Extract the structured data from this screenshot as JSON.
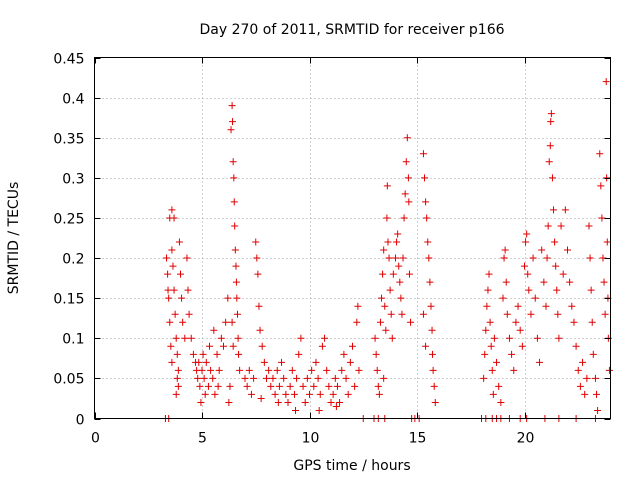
{
  "chart_data": {
    "type": "scatter",
    "title": "Day 270 of 2011, SRMTID for receiver p166",
    "xlabel": "GPS time / hours",
    "ylabel": "SRMTID / TECUs",
    "xlim": [
      0,
      24
    ],
    "ylim": [
      0,
      0.45
    ],
    "x_ticks": [
      "0",
      "5",
      "10",
      "15",
      "20"
    ],
    "x_tick_values": [
      0,
      5,
      10,
      15,
      20
    ],
    "y_ticks": [
      "0",
      "0.05",
      "0.1",
      "0.15",
      "0.2",
      "0.25",
      "0.3",
      "0.35",
      "0.4",
      "0.45"
    ],
    "y_tick_values": [
      0,
      0.05,
      0.1,
      0.15,
      0.2,
      0.25,
      0.3,
      0.35,
      0.4,
      0.45
    ],
    "grid": true,
    "marker": "+",
    "color": "#e00000",
    "series": [
      {
        "name": "SRMTID",
        "points": [
          [
            3.3,
            0.0
          ],
          [
            3.45,
            0.0
          ],
          [
            3.35,
            0.2
          ],
          [
            3.4,
            0.18
          ],
          [
            3.42,
            0.16
          ],
          [
            3.45,
            0.15
          ],
          [
            3.5,
            0.12
          ],
          [
            3.55,
            0.09
          ],
          [
            3.6,
            0.07
          ],
          [
            3.5,
            0.25
          ],
          [
            3.6,
            0.26
          ],
          [
            3.7,
            0.25
          ],
          [
            3.6,
            0.21
          ],
          [
            3.65,
            0.19
          ],
          [
            3.7,
            0.16
          ],
          [
            3.75,
            0.13
          ],
          [
            3.8,
            0.1
          ],
          [
            3.85,
            0.08
          ],
          [
            3.9,
            0.06
          ],
          [
            3.95,
            0.22
          ],
          [
            4.0,
            0.18
          ],
          [
            4.05,
            0.15
          ],
          [
            4.1,
            0.12
          ],
          [
            4.2,
            0.1
          ],
          [
            4.3,
            0.2
          ],
          [
            4.35,
            0.16
          ],
          [
            4.4,
            0.13
          ],
          [
            3.9,
            0.04
          ],
          [
            3.8,
            0.03
          ],
          [
            3.85,
            0.05
          ],
          [
            4.5,
            0.1
          ],
          [
            4.6,
            0.08
          ],
          [
            4.7,
            0.07
          ],
          [
            4.75,
            0.06
          ],
          [
            4.8,
            0.05
          ],
          [
            4.9,
            0.04
          ],
          [
            5.0,
            0.06
          ],
          [
            5.1,
            0.05
          ],
          [
            5.2,
            0.07
          ],
          [
            5.3,
            0.04
          ],
          [
            5.4,
            0.06
          ],
          [
            5.5,
            0.05
          ],
          [
            5.6,
            0.03
          ],
          [
            5.7,
            0.08
          ],
          [
            5.8,
            0.06
          ],
          [
            5.9,
            0.1
          ],
          [
            6.0,
            0.09
          ],
          [
            6.1,
            0.12
          ],
          [
            4.95,
            0.02
          ],
          [
            5.15,
            0.03
          ],
          [
            5.35,
            0.09
          ],
          [
            5.55,
            0.11
          ],
          [
            5.75,
            0.04
          ],
          [
            5.05,
            0.08
          ],
          [
            4.85,
            0.07
          ],
          [
            6.2,
            0.15
          ],
          [
            6.25,
            0.02
          ],
          [
            6.3,
            0.04
          ],
          [
            6.35,
            0.36
          ],
          [
            6.4,
            0.39
          ],
          [
            6.42,
            0.37
          ],
          [
            6.45,
            0.32
          ],
          [
            6.48,
            0.3
          ],
          [
            6.5,
            0.27
          ],
          [
            6.52,
            0.24
          ],
          [
            6.55,
            0.21
          ],
          [
            6.58,
            0.19
          ],
          [
            6.6,
            0.17
          ],
          [
            6.62,
            0.15
          ],
          [
            6.65,
            0.13
          ],
          [
            6.68,
            0.1
          ],
          [
            6.7,
            0.08
          ],
          [
            6.75,
            0.06
          ],
          [
            6.4,
            0.12
          ],
          [
            6.45,
            0.09
          ],
          [
            7.0,
            0.05
          ],
          [
            7.1,
            0.04
          ],
          [
            7.2,
            0.06
          ],
          [
            7.3,
            0.03
          ],
          [
            7.4,
            0.05
          ],
          [
            7.5,
            0.22
          ],
          [
            7.55,
            0.2
          ],
          [
            7.6,
            0.18
          ],
          [
            7.65,
            0.14
          ],
          [
            7.7,
            0.11
          ],
          [
            7.8,
            0.09
          ],
          [
            7.9,
            0.07
          ],
          [
            8.0,
            0.05
          ],
          [
            8.1,
            0.06
          ],
          [
            8.2,
            0.04
          ],
          [
            8.3,
            0.05
          ],
          [
            8.4,
            0.03
          ],
          [
            8.5,
            0.06
          ],
          [
            8.6,
            0.04
          ],
          [
            8.7,
            0.07
          ],
          [
            8.8,
            0.05
          ],
          [
            8.9,
            0.03
          ],
          [
            9.0,
            0.02
          ],
          [
            9.1,
            0.04
          ],
          [
            9.2,
            0.06
          ],
          [
            9.3,
            0.03
          ],
          [
            9.4,
            0.05
          ],
          [
            9.5,
            0.08
          ],
          [
            9.6,
            0.1
          ],
          [
            9.7,
            0.04
          ],
          [
            9.8,
            0.02
          ],
          [
            9.9,
            0.05
          ],
          [
            10.0,
            0.03
          ],
          [
            10.1,
            0.06
          ],
          [
            10.2,
            0.04
          ],
          [
            10.3,
            0.07
          ],
          [
            10.4,
            0.05
          ],
          [
            10.5,
            0.03
          ],
          [
            10.6,
            0.09
          ],
          [
            10.7,
            0.1
          ],
          [
            10.8,
            0.06
          ],
          [
            10.9,
            0.04
          ],
          [
            11.0,
            0.02
          ],
          [
            11.1,
            0.03
          ],
          [
            11.2,
            0.05
          ],
          [
            11.3,
            0.04
          ],
          [
            11.4,
            0.02
          ],
          [
            11.5,
            0.06
          ],
          [
            11.6,
            0.08
          ],
          [
            11.7,
            0.05
          ],
          [
            11.8,
            0.03
          ],
          [
            11.9,
            0.07
          ],
          [
            12.0,
            0.09
          ],
          [
            12.1,
            0.04
          ],
          [
            12.2,
            0.12
          ],
          [
            12.25,
            0.14
          ],
          [
            12.3,
            0.06
          ],
          [
            8.55,
            0.02
          ],
          [
            9.35,
            0.01
          ],
          [
            10.45,
            0.01
          ],
          [
            11.25,
            0.015
          ],
          [
            7.75,
            0.025
          ],
          [
            12.5,
            0.0
          ],
          [
            13.0,
            0.0
          ],
          [
            13.2,
            0.0
          ],
          [
            13.5,
            0.0
          ],
          [
            13.05,
            0.1
          ],
          [
            13.1,
            0.08
          ],
          [
            13.15,
            0.06
          ],
          [
            13.2,
            0.04
          ],
          [
            13.3,
            0.12
          ],
          [
            13.35,
            0.15
          ],
          [
            13.4,
            0.18
          ],
          [
            13.45,
            0.21
          ],
          [
            13.5,
            0.14
          ],
          [
            13.55,
            0.11
          ],
          [
            13.6,
            0.25
          ],
          [
            13.62,
            0.29
          ],
          [
            13.65,
            0.22
          ],
          [
            13.7,
            0.2
          ],
          [
            13.75,
            0.16
          ],
          [
            13.8,
            0.13
          ],
          [
            13.85,
            0.1
          ],
          [
            13.9,
            0.18
          ],
          [
            14.0,
            0.2
          ],
          [
            14.05,
            0.22
          ],
          [
            14.1,
            0.23
          ],
          [
            14.15,
            0.19
          ],
          [
            14.2,
            0.17
          ],
          [
            14.25,
            0.15
          ],
          [
            14.3,
            0.13
          ],
          [
            14.35,
            0.2
          ],
          [
            14.4,
            0.25
          ],
          [
            14.45,
            0.28
          ],
          [
            14.5,
            0.32
          ],
          [
            14.55,
            0.35
          ],
          [
            14.6,
            0.3
          ],
          [
            14.62,
            0.27
          ],
          [
            14.65,
            0.18
          ],
          [
            14.7,
            0.12
          ],
          [
            13.25,
            0.03
          ],
          [
            13.45,
            0.05
          ],
          [
            14.75,
            0.0
          ],
          [
            14.9,
            0.0
          ],
          [
            15.1,
            0.0
          ],
          [
            15.3,
            0.33
          ],
          [
            15.35,
            0.3
          ],
          [
            15.4,
            0.27
          ],
          [
            15.45,
            0.25
          ],
          [
            15.5,
            0.22
          ],
          [
            15.55,
            0.2
          ],
          [
            15.6,
            0.17
          ],
          [
            15.65,
            0.14
          ],
          [
            15.7,
            0.11
          ],
          [
            15.72,
            0.08
          ],
          [
            15.75,
            0.06
          ],
          [
            15.8,
            0.04
          ],
          [
            15.85,
            0.02
          ],
          [
            15.3,
            0.13
          ],
          [
            15.4,
            0.09
          ],
          [
            18.0,
            0.0
          ],
          [
            18.2,
            0.0
          ],
          [
            18.5,
            0.0
          ],
          [
            18.7,
            0.0
          ],
          [
            18.9,
            0.0
          ],
          [
            19.3,
            0.0
          ],
          [
            19.8,
            0.0
          ],
          [
            20.1,
            0.0
          ],
          [
            18.1,
            0.05
          ],
          [
            18.15,
            0.08
          ],
          [
            18.2,
            0.11
          ],
          [
            18.25,
            0.14
          ],
          [
            18.3,
            0.16
          ],
          [
            18.35,
            0.18
          ],
          [
            18.4,
            0.12
          ],
          [
            18.45,
            0.09
          ],
          [
            18.5,
            0.06
          ],
          [
            18.55,
            0.03
          ],
          [
            18.6,
            0.1
          ],
          [
            18.7,
            0.07
          ],
          [
            18.8,
            0.04
          ],
          [
            18.9,
            0.02
          ],
          [
            19.0,
            0.15
          ],
          [
            19.05,
            0.2
          ],
          [
            19.1,
            0.21
          ],
          [
            19.15,
            0.17
          ],
          [
            19.2,
            0.13
          ],
          [
            19.3,
            0.1
          ],
          [
            19.4,
            0.08
          ],
          [
            19.5,
            0.06
          ],
          [
            19.6,
            0.12
          ],
          [
            19.7,
            0.14
          ],
          [
            19.8,
            0.11
          ],
          [
            19.9,
            0.09
          ],
          [
            20.0,
            0.19
          ],
          [
            20.05,
            0.22
          ],
          [
            20.1,
            0.23
          ],
          [
            20.15,
            0.18
          ],
          [
            20.2,
            0.16
          ],
          [
            20.3,
            0.13
          ],
          [
            20.4,
            0.2
          ],
          [
            20.5,
            0.15
          ],
          [
            20.6,
            0.1
          ],
          [
            20.7,
            0.07
          ],
          [
            20.8,
            0.21
          ],
          [
            20.9,
            0.17
          ],
          [
            21.0,
            0.14
          ],
          [
            21.05,
            0.2
          ],
          [
            21.1,
            0.24
          ],
          [
            21.15,
            0.32
          ],
          [
            21.2,
            0.34
          ],
          [
            21.22,
            0.37
          ],
          [
            21.25,
            0.38
          ],
          [
            21.3,
            0.3
          ],
          [
            21.35,
            0.26
          ],
          [
            21.4,
            0.22
          ],
          [
            21.45,
            0.19
          ],
          [
            21.5,
            0.16
          ],
          [
            21.55,
            0.13
          ],
          [
            21.6,
            0.1
          ],
          [
            21.7,
            0.24
          ],
          [
            21.8,
            0.18
          ],
          [
            21.9,
            0.26
          ],
          [
            22.0,
            0.21
          ],
          [
            22.1,
            0.17
          ],
          [
            22.2,
            0.14
          ],
          [
            22.3,
            0.12
          ],
          [
            22.4,
            0.09
          ],
          [
            22.5,
            0.06
          ],
          [
            22.6,
            0.04
          ],
          [
            22.7,
            0.07
          ],
          [
            22.8,
            0.03
          ],
          [
            22.9,
            0.05
          ],
          [
            23.0,
            0.24
          ],
          [
            23.05,
            0.2
          ],
          [
            23.1,
            0.16
          ],
          [
            23.15,
            0.12
          ],
          [
            23.2,
            0.08
          ],
          [
            23.3,
            0.05
          ],
          [
            23.35,
            0.03
          ],
          [
            23.4,
            0.01
          ],
          [
            23.5,
            0.33
          ],
          [
            23.55,
            0.29
          ],
          [
            23.6,
            0.25
          ],
          [
            23.65,
            0.2
          ],
          [
            23.7,
            0.17
          ],
          [
            23.75,
            0.13
          ],
          [
            23.8,
            0.42
          ],
          [
            23.82,
            0.3
          ],
          [
            23.85,
            0.22
          ],
          [
            23.88,
            0.15
          ],
          [
            23.9,
            0.1
          ],
          [
            23.95,
            0.06
          ],
          [
            20.95,
            0.0
          ],
          [
            21.6,
            0.0
          ],
          [
            22.4,
            0.0
          ],
          [
            23.3,
            0.0
          ]
        ]
      }
    ]
  }
}
